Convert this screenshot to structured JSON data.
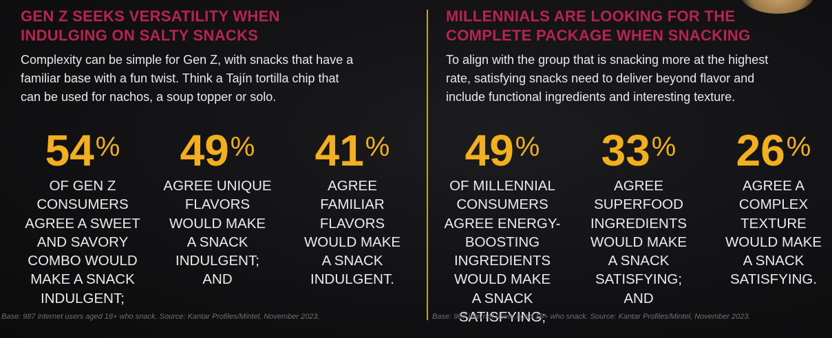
{
  "left": {
    "headline": [
      "GEN Z SEEKS VERSATILITY WHEN",
      "INDULGING ON SALTY SNACKS"
    ],
    "intro": [
      "Complexity can be simple for Gen Z, with snacks that have a",
      "familiar base with a fun twist. Think a Tajín tortilla chip that",
      "can be used for nachos, a soup topper or solo."
    ],
    "stats": [
      {
        "number": "54",
        "sign": "%",
        "lines": [
          "OF GEN Z",
          "CONSUMERS",
          "AGREE A SWEET",
          "AND SAVORY",
          "COMBO WOULD",
          "MAKE A SNACK",
          "INDULGENT;"
        ]
      },
      {
        "number": "49",
        "sign": "%",
        "lines": [
          "AGREE UNIQUE",
          "FLAVORS",
          "WOULD MAKE",
          "A SNACK",
          "INDULGENT;",
          "AND"
        ]
      },
      {
        "number": "41",
        "sign": "%",
        "lines": [
          "AGREE",
          "FAMILIAR",
          "FLAVORS",
          "WOULD MAKE",
          "A SNACK",
          "INDULGENT."
        ]
      }
    ],
    "footnote": "Base: 987 internet users aged 18+ who snack. Source: Kantar Profiles/Mintel, November 2023."
  },
  "right": {
    "headline": [
      "MILLENNIALS ARE LOOKING FOR THE",
      "COMPLETE PACKAGE WHEN SNACKING"
    ],
    "intro": [
      "To align with the group that is snacking more at the highest",
      "rate, satisfying snacks need to deliver beyond flavor and",
      "include functional ingredients and interesting texture."
    ],
    "stats": [
      {
        "number": "49",
        "sign": "%",
        "lines": [
          "OF MILLENNIAL",
          "CONSUMERS",
          "AGREE ENERGY-",
          "BOOSTING",
          "INGREDIENTS",
          "WOULD MAKE",
          "A SNACK",
          "SATISFYING;"
        ]
      },
      {
        "number": "33",
        "sign": "%",
        "lines": [
          "AGREE",
          "SUPERFOOD",
          "INGREDIENTS",
          "WOULD MAKE",
          "A SNACK",
          "SATISFYING;",
          "AND"
        ]
      },
      {
        "number": "26",
        "sign": "%",
        "lines": [
          "AGREE A",
          "COMPLEX",
          "TEXTURE",
          "WOULD MAKE",
          "A SNACK",
          "SATISFYING."
        ]
      }
    ],
    "footnote": "Base: 987 internet users aged 18+ who snack. Source: Kantar Profiles/Mintel, November 2023."
  },
  "colors": {
    "headline": "#b8244f",
    "accent": "#f2b01e",
    "divider": "#c9a227",
    "background": "#121214"
  }
}
